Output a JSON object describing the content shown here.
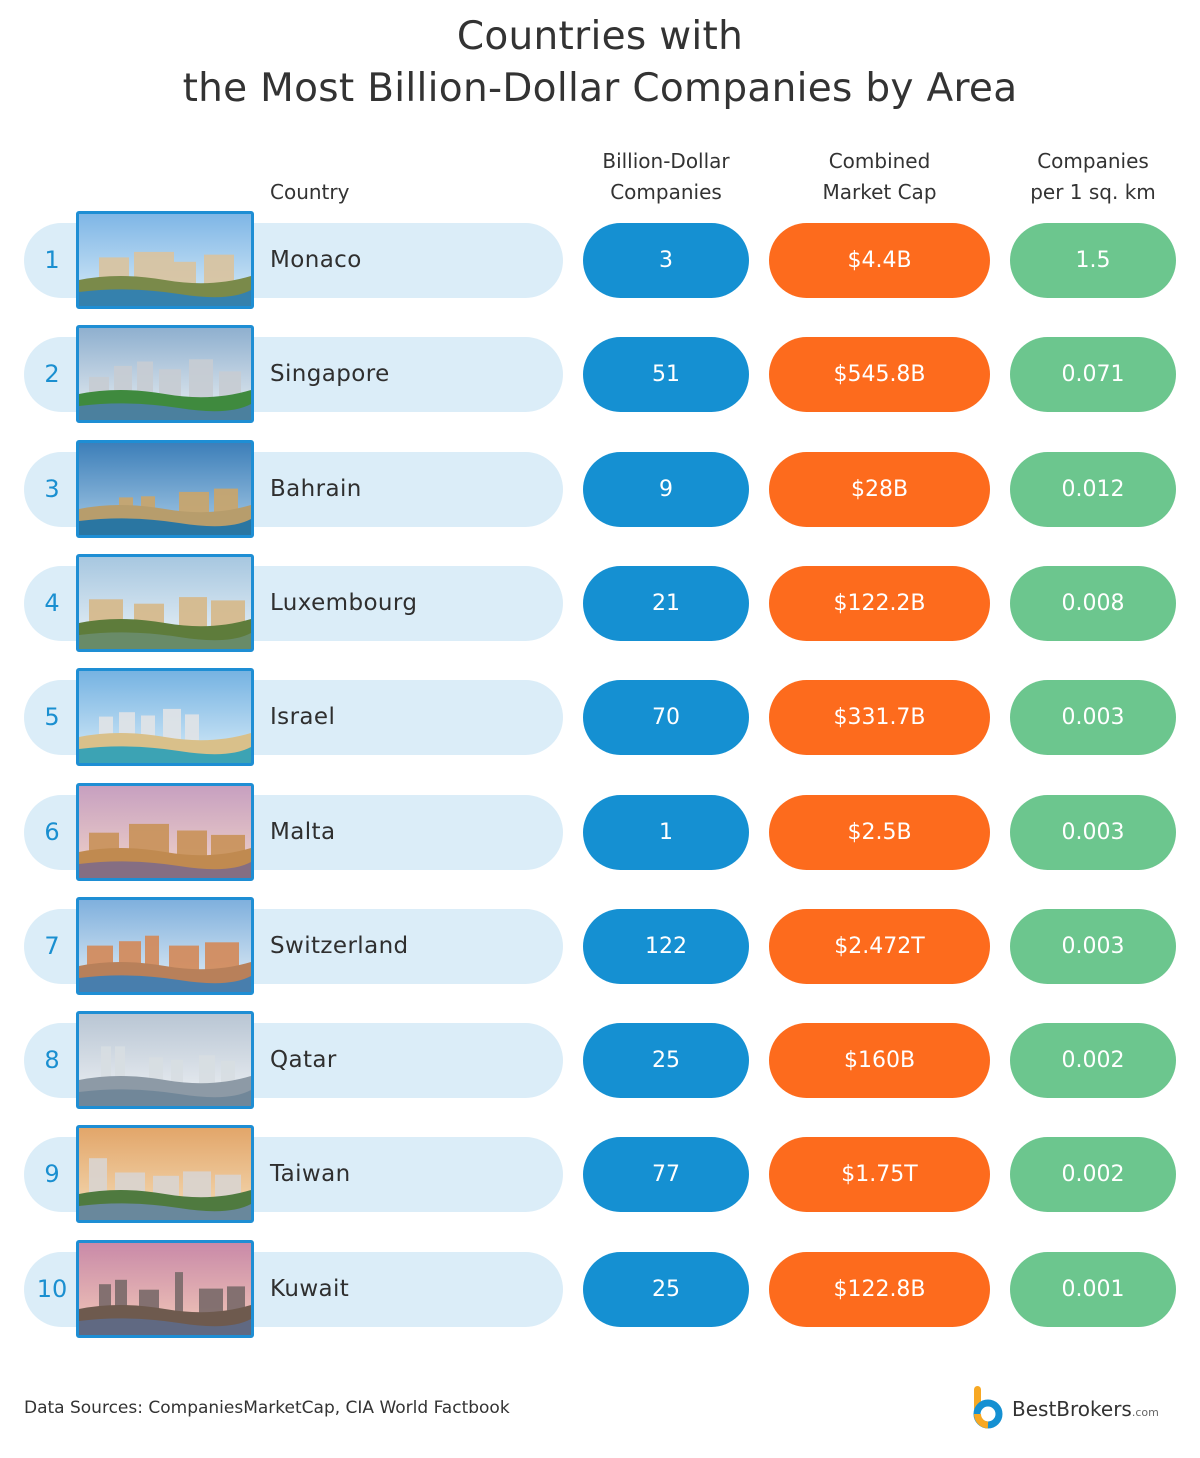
{
  "title_line1": "Countries with",
  "title_line2": "the Most Billion-Dollar Companies by Area",
  "headers": {
    "country": "Country",
    "count_line1": "Billion-Dollar",
    "count_line2": "Companies",
    "cap_line1": "Combined",
    "cap_line2": "Market Cap",
    "density_line1": "Companies",
    "density_line2": "per 1 sq. km"
  },
  "chart_data": {
    "type": "table",
    "columns": [
      "Country",
      "Billion-Dollar Companies",
      "Combined Market Cap",
      "Companies per 1 sq. km"
    ],
    "rows": [
      {
        "rank": "1",
        "country": "Monaco",
        "companies": "3",
        "market_cap": "$4.4B",
        "per_sq_km": "1.5"
      },
      {
        "rank": "2",
        "country": "Singapore",
        "companies": "51",
        "market_cap": "$545.8B",
        "per_sq_km": "0.071"
      },
      {
        "rank": "3",
        "country": "Bahrain",
        "companies": "9",
        "market_cap": "$28B",
        "per_sq_km": "0.012"
      },
      {
        "rank": "4",
        "country": "Luxembourg",
        "companies": "21",
        "market_cap": "$122.2B",
        "per_sq_km": "0.008"
      },
      {
        "rank": "5",
        "country": "Israel",
        "companies": "70",
        "market_cap": "$331.7B",
        "per_sq_km": "0.003"
      },
      {
        "rank": "6",
        "country": "Malta",
        "companies": "1",
        "market_cap": "$2.5B",
        "per_sq_km": "0.003"
      },
      {
        "rank": "7",
        "country": "Switzerland",
        "companies": "122",
        "market_cap": "$2.472T",
        "per_sq_km": "0.003"
      },
      {
        "rank": "8",
        "country": "Qatar",
        "companies": "25",
        "market_cap": "$160B",
        "per_sq_km": "0.002"
      },
      {
        "rank": "9",
        "country": "Taiwan",
        "companies": "77",
        "market_cap": "$1.75T",
        "per_sq_km": "0.002"
      },
      {
        "rank": "10",
        "country": "Kuwait",
        "companies": "25",
        "market_cap": "$122.8B",
        "per_sq_km": "0.001"
      }
    ]
  },
  "colors": {
    "name_pill": "#dbedf8",
    "count_pill": "#1590d2",
    "cap_pill": "#fd6b1d",
    "density_pill": "#6cc68e",
    "rank_text": "#1a8fd0",
    "photo_border": "#1e8ed4"
  },
  "footer": {
    "source": "Data Sources: CompaniesMarketCap, CIA World Factbook",
    "logo_name": "BestBrokers",
    "logo_suffix": ".com",
    "logo_icon": "bestbrokers-b-logo-icon"
  }
}
